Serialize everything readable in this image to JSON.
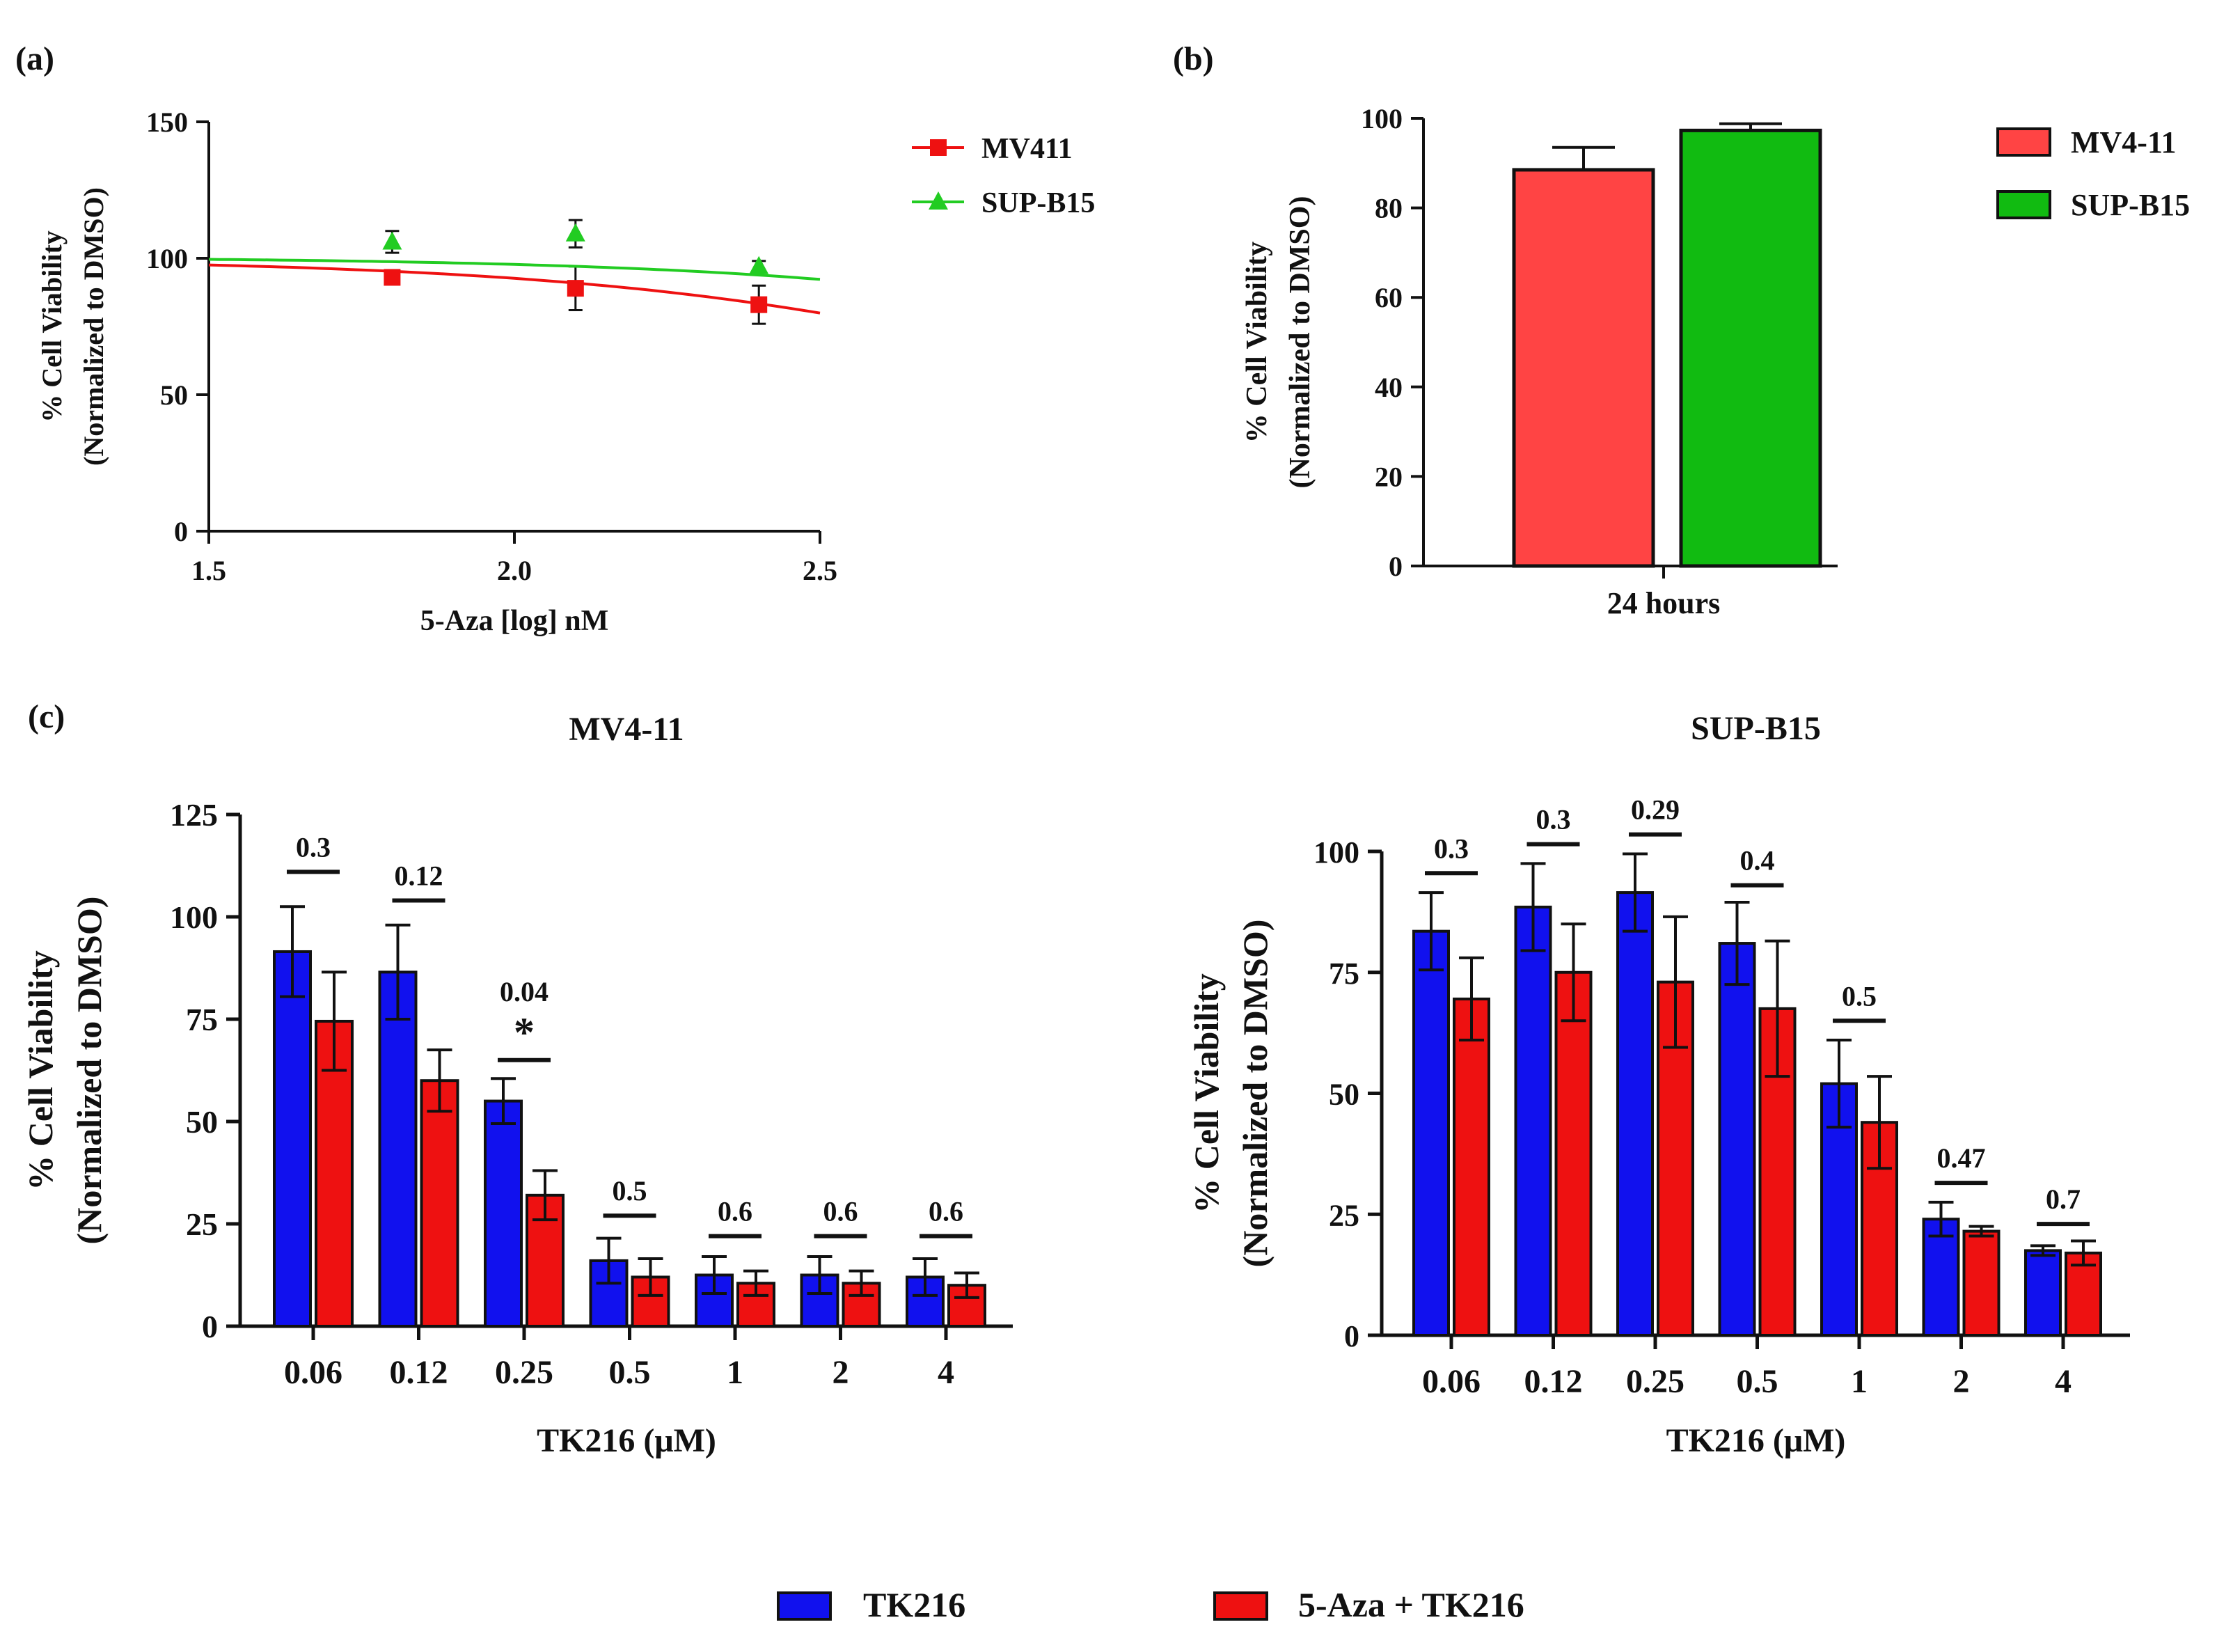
{
  "panels": {
    "a": {
      "label": "(a)"
    },
    "b": {
      "label": "(b)"
    },
    "c": {
      "label": "(c)"
    }
  },
  "colors": {
    "red": "#ee1111",
    "green": "#22cc22",
    "blue": "#1111ee",
    "red_light": "#ff4444",
    "green_bar": "#11bb11",
    "axis": "#111111"
  },
  "chart_data": [
    {
      "id": "a",
      "type": "scatter",
      "title": "",
      "xlabel": "5-Aza [log] nM",
      "ylabel_lines": [
        "% Cell Viability",
        "(Normalized to DMSO)"
      ],
      "xlim": [
        1.5,
        2.5
      ],
      "ylim": [
        0,
        150
      ],
      "xticks": [
        "1.5",
        "2.0",
        "2.5"
      ],
      "yticks": [
        "0",
        "50",
        "100",
        "150"
      ],
      "legend_position": "right",
      "series": [
        {
          "name": "MV411",
          "color": "#ee1111",
          "marker": "square",
          "x": [
            1.8,
            2.1,
            2.4
          ],
          "y": [
            93,
            89,
            83
          ],
          "err": [
            0,
            8,
            7
          ],
          "fit": {
            "top": 100,
            "bottom": 0,
            "log_ic50": 3.1,
            "hill": 1
          }
        },
        {
          "name": "SUP-B15",
          "color": "#22cc22",
          "marker": "triangle",
          "x": [
            1.8,
            2.1,
            2.4
          ],
          "y": [
            106,
            109,
            97
          ],
          "err": [
            4,
            5,
            2
          ],
          "fit": {
            "top": 100.5,
            "bottom": 0,
            "log_ic50": 3.55,
            "hill": 1
          }
        }
      ]
    },
    {
      "id": "b",
      "type": "bar",
      "categories": [
        "24 hours"
      ],
      "ylabel_lines": [
        "% Cell Viability",
        "(Normalized to DMSO)"
      ],
      "ylim": [
        0,
        100
      ],
      "yticks": [
        "0",
        "20",
        "40",
        "60",
        "80",
        "100"
      ],
      "legend_position": "right",
      "series": [
        {
          "name": "MV4-11",
          "color": "#ff4444",
          "values": [
            88.5
          ],
          "err": [
            5
          ]
        },
        {
          "name": "SUP-B15",
          "color": "#11bb11",
          "values": [
            97.3
          ],
          "err": [
            1.5
          ]
        }
      ]
    },
    {
      "id": "c1",
      "type": "bar",
      "title": "MV4-11",
      "xlabel": "TK216 (μM)",
      "ylabel_lines": [
        "% Cell Viability",
        "(Normalized to DMSO)"
      ],
      "ylim": [
        0,
        125
      ],
      "yticks": [
        "0",
        "25",
        "50",
        "75",
        "100",
        "125"
      ],
      "categories": [
        "0.06",
        "0.12",
        "0.25",
        "0.5",
        "1",
        "2",
        "4"
      ],
      "series": [
        {
          "name": "TK216",
          "color": "#1111ee",
          "values": [
            91.5,
            86.5,
            55,
            16,
            12.5,
            12.5,
            12
          ],
          "err": [
            11,
            11.5,
            5.5,
            5.5,
            4.5,
            4.5,
            4.5
          ]
        },
        {
          "name": "5-Aza + TK216",
          "color": "#ee1111",
          "values": [
            74.5,
            60,
            32,
            12,
            10.5,
            10.5,
            10
          ],
          "err": [
            12,
            7.5,
            6,
            4.5,
            3,
            3,
            3
          ]
        }
      ],
      "annotations": [
        {
          "index": 0,
          "text": "0.3",
          "y": 111
        },
        {
          "index": 1,
          "text": "0.12",
          "y": 104
        },
        {
          "index": 2,
          "text": "0.04",
          "y": 65,
          "star": "*"
        },
        {
          "index": 3,
          "text": "0.5",
          "y": 27
        },
        {
          "index": 4,
          "text": "0.6",
          "y": 22
        },
        {
          "index": 5,
          "text": "0.6",
          "y": 22
        },
        {
          "index": 6,
          "text": "0.6",
          "y": 22
        }
      ]
    },
    {
      "id": "c2",
      "type": "bar",
      "title": "SUP-B15",
      "xlabel": "TK216 (μM)",
      "ylabel_lines": [
        "% Cell Viability",
        "(Normalized to DMSO)"
      ],
      "ylim": [
        0,
        100
      ],
      "yticks": [
        "0",
        "25",
        "50",
        "75",
        "100"
      ],
      "categories": [
        "0.06",
        "0.12",
        "0.25",
        "0.5",
        "1",
        "2",
        "4"
      ],
      "series": [
        {
          "name": "TK216",
          "color": "#1111ee",
          "values": [
            83.5,
            88.5,
            91.5,
            81,
            52,
            24,
            17.5
          ],
          "err": [
            8,
            9,
            8,
            8.5,
            9,
            3.5,
            1
          ]
        },
        {
          "name": "5-Aza + TK216",
          "color": "#ee1111",
          "values": [
            69.5,
            75,
            73,
            67.5,
            44,
            21.5,
            17
          ],
          "err": [
            8.5,
            10,
            13.5,
            14,
            9.5,
            1,
            2.5
          ]
        }
      ],
      "annotations": [
        {
          "index": 0,
          "text": "0.3",
          "y": 95.5
        },
        {
          "index": 1,
          "text": "0.3",
          "y": 101.5
        },
        {
          "index": 2,
          "text": "0.29",
          "y": 103.5
        },
        {
          "index": 3,
          "text": "0.4",
          "y": 93
        },
        {
          "index": 4,
          "text": "0.5",
          "y": 65
        },
        {
          "index": 5,
          "text": "0.47",
          "y": 31.5
        },
        {
          "index": 6,
          "text": "0.7",
          "y": 23
        }
      ]
    }
  ],
  "shared_legend": {
    "items": [
      "TK216",
      "5-Aza + TK216"
    ],
    "colors": [
      "#1111ee",
      "#ee1111"
    ]
  }
}
